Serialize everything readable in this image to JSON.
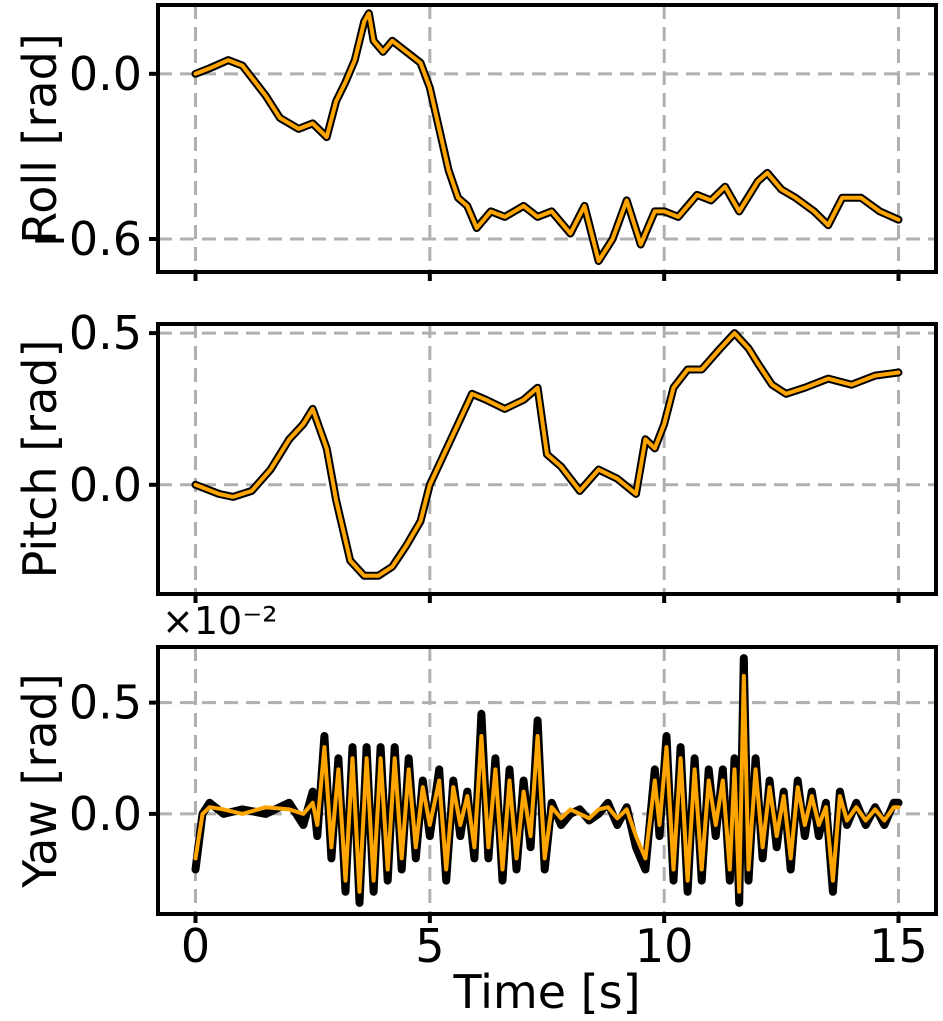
{
  "chart_data": [
    {
      "type": "line",
      "ylabel": "Roll [rad]",
      "xlim": [
        -0.8,
        15.8
      ],
      "ylim": [
        -0.72,
        0.25
      ],
      "yticks": [
        -0.6,
        0.0
      ],
      "ytick_labels": [
        "−0.6",
        "0.0"
      ],
      "grid": true,
      "series": [
        {
          "color": "#000000",
          "x": [
            0,
            0.3,
            0.7,
            1.0,
            1.5,
            1.8,
            2.2,
            2.5,
            2.8,
            3.0,
            3.2,
            3.4,
            3.6,
            3.7,
            3.8,
            4.0,
            4.2,
            4.5,
            4.8,
            5.0,
            5.2,
            5.4,
            5.6,
            5.8,
            6.0,
            6.3,
            6.6,
            7.0,
            7.3,
            7.6,
            8.0,
            8.3,
            8.6,
            8.9,
            9.2,
            9.5,
            9.8,
            10.0,
            10.3,
            10.7,
            11.0,
            11.3,
            11.6,
            12.0,
            12.2,
            12.5,
            12.8,
            13.2,
            13.5,
            13.8,
            14.2,
            14.6,
            15.0
          ],
          "y": [
            0.0,
            0.02,
            0.05,
            0.03,
            -0.08,
            -0.16,
            -0.2,
            -0.18,
            -0.23,
            -0.1,
            -0.03,
            0.05,
            0.19,
            0.22,
            0.12,
            0.08,
            0.12,
            0.08,
            0.04,
            -0.05,
            -0.2,
            -0.35,
            -0.45,
            -0.48,
            -0.56,
            -0.5,
            -0.52,
            -0.48,
            -0.52,
            -0.5,
            -0.58,
            -0.48,
            -0.68,
            -0.6,
            -0.46,
            -0.62,
            -0.5,
            -0.5,
            -0.52,
            -0.44,
            -0.46,
            -0.41,
            -0.5,
            -0.39,
            -0.36,
            -0.42,
            -0.45,
            -0.5,
            -0.55,
            -0.45,
            -0.45,
            -0.5,
            -0.53
          ]
        },
        {
          "color": "#ffa500",
          "x": [
            0,
            0.3,
            0.7,
            1.0,
            1.5,
            1.8,
            2.2,
            2.5,
            2.8,
            3.0,
            3.2,
            3.4,
            3.6,
            3.7,
            3.8,
            4.0,
            4.2,
            4.5,
            4.8,
            5.0,
            5.2,
            5.4,
            5.6,
            5.8,
            6.0,
            6.3,
            6.6,
            7.0,
            7.3,
            7.6,
            8.0,
            8.3,
            8.6,
            8.9,
            9.2,
            9.5,
            9.8,
            10.0,
            10.3,
            10.7,
            11.0,
            11.3,
            11.6,
            12.0,
            12.2,
            12.5,
            12.8,
            13.2,
            13.5,
            13.8,
            14.2,
            14.6,
            15.0
          ],
          "y": [
            0.0,
            0.02,
            0.05,
            0.03,
            -0.08,
            -0.16,
            -0.2,
            -0.18,
            -0.23,
            -0.1,
            -0.03,
            0.05,
            0.19,
            0.22,
            0.12,
            0.08,
            0.12,
            0.08,
            0.04,
            -0.05,
            -0.2,
            -0.35,
            -0.45,
            -0.48,
            -0.56,
            -0.5,
            -0.52,
            -0.48,
            -0.52,
            -0.5,
            -0.58,
            -0.48,
            -0.68,
            -0.6,
            -0.46,
            -0.62,
            -0.5,
            -0.5,
            -0.52,
            -0.44,
            -0.46,
            -0.41,
            -0.5,
            -0.39,
            -0.36,
            -0.42,
            -0.45,
            -0.5,
            -0.55,
            -0.45,
            -0.45,
            -0.5,
            -0.53
          ]
        }
      ]
    },
    {
      "type": "line",
      "ylabel": "Pitch [rad]",
      "xlim": [
        -0.8,
        15.8
      ],
      "ylim": [
        -0.36,
        0.53
      ],
      "yticks": [
        0.0,
        0.5
      ],
      "ytick_labels": [
        "0.0",
        "0.5"
      ],
      "grid": true,
      "series": [
        {
          "color": "#000000",
          "x": [
            0,
            0.5,
            0.8,
            1.2,
            1.6,
            2.0,
            2.3,
            2.5,
            2.8,
            3.0,
            3.3,
            3.6,
            3.9,
            4.2,
            4.5,
            4.8,
            5.0,
            5.3,
            5.6,
            5.9,
            6.2,
            6.6,
            7.0,
            7.3,
            7.5,
            7.8,
            8.2,
            8.6,
            9.0,
            9.4,
            9.6,
            9.8,
            10.0,
            10.2,
            10.5,
            10.8,
            11.2,
            11.5,
            11.8,
            12.0,
            12.3,
            12.6,
            13.0,
            13.5,
            14.0,
            14.5,
            15.0
          ],
          "y": [
            0.0,
            -0.03,
            -0.04,
            -0.02,
            0.05,
            0.15,
            0.2,
            0.25,
            0.12,
            -0.05,
            -0.25,
            -0.3,
            -0.3,
            -0.27,
            -0.2,
            -0.12,
            0.0,
            0.1,
            0.2,
            0.3,
            0.28,
            0.25,
            0.28,
            0.32,
            0.1,
            0.06,
            -0.02,
            0.05,
            0.02,
            -0.03,
            0.15,
            0.12,
            0.2,
            0.32,
            0.38,
            0.38,
            0.45,
            0.5,
            0.45,
            0.4,
            0.33,
            0.3,
            0.32,
            0.35,
            0.33,
            0.36,
            0.37
          ]
        },
        {
          "color": "#ffa500",
          "x": [
            0,
            0.5,
            0.8,
            1.2,
            1.6,
            2.0,
            2.3,
            2.5,
            2.8,
            3.0,
            3.3,
            3.6,
            3.9,
            4.2,
            4.5,
            4.8,
            5.0,
            5.3,
            5.6,
            5.9,
            6.2,
            6.6,
            7.0,
            7.3,
            7.5,
            7.8,
            8.2,
            8.6,
            9.0,
            9.4,
            9.6,
            9.8,
            10.0,
            10.2,
            10.5,
            10.8,
            11.2,
            11.5,
            11.8,
            12.0,
            12.3,
            12.6,
            13.0,
            13.5,
            14.0,
            14.5,
            15.0
          ],
          "y": [
            0.0,
            -0.03,
            -0.04,
            -0.02,
            0.05,
            0.15,
            0.2,
            0.25,
            0.12,
            -0.05,
            -0.25,
            -0.3,
            -0.3,
            -0.27,
            -0.2,
            -0.12,
            0.0,
            0.1,
            0.2,
            0.3,
            0.28,
            0.25,
            0.28,
            0.32,
            0.1,
            0.06,
            -0.02,
            0.05,
            0.02,
            -0.03,
            0.15,
            0.12,
            0.2,
            0.32,
            0.38,
            0.38,
            0.45,
            0.5,
            0.45,
            0.4,
            0.33,
            0.3,
            0.32,
            0.35,
            0.33,
            0.36,
            0.37
          ]
        }
      ]
    },
    {
      "type": "line",
      "ylabel": "Yaw [rad]",
      "xlabel": "Time [s]",
      "offset_text": "×10⁻²",
      "xlim": [
        -0.8,
        15.8
      ],
      "ylim": [
        -0.45,
        0.75
      ],
      "xticks": [
        0,
        5,
        10,
        15
      ],
      "xtick_labels": [
        "0",
        "5",
        "10",
        "15"
      ],
      "yticks": [
        0.0,
        0.5
      ],
      "ytick_labels": [
        "0.0",
        "0.5"
      ],
      "grid": true,
      "series": [
        {
          "color": "#000000",
          "x": [
            0,
            0.15,
            0.3,
            0.6,
            1.0,
            1.5,
            2.0,
            2.3,
            2.5,
            2.6,
            2.75,
            2.9,
            3.05,
            3.2,
            3.35,
            3.5,
            3.65,
            3.8,
            3.95,
            4.1,
            4.25,
            4.4,
            4.55,
            4.7,
            4.85,
            5.0,
            5.2,
            5.35,
            5.5,
            5.65,
            5.8,
            5.95,
            6.1,
            6.25,
            6.4,
            6.55,
            6.7,
            6.85,
            7.0,
            7.15,
            7.3,
            7.45,
            7.6,
            7.8,
            8.0,
            8.2,
            8.4,
            8.6,
            8.8,
            9.0,
            9.2,
            9.4,
            9.6,
            9.8,
            9.9,
            10.05,
            10.2,
            10.35,
            10.5,
            10.65,
            10.8,
            10.95,
            11.1,
            11.25,
            11.4,
            11.5,
            11.6,
            11.7,
            11.8,
            11.95,
            12.1,
            12.25,
            12.4,
            12.55,
            12.7,
            12.85,
            13.0,
            13.15,
            13.3,
            13.45,
            13.6,
            13.75,
            13.9,
            14.1,
            14.3,
            14.5,
            14.7,
            14.9,
            15.0
          ],
          "y": [
            -0.25,
            0.0,
            0.05,
            0.0,
            0.02,
            0.0,
            0.05,
            -0.05,
            0.1,
            -0.1,
            0.35,
            -0.2,
            0.25,
            -0.35,
            0.3,
            -0.4,
            0.3,
            -0.35,
            0.3,
            -0.3,
            0.3,
            -0.25,
            0.25,
            -0.2,
            0.15,
            -0.1,
            0.2,
            -0.3,
            0.15,
            -0.1,
            0.1,
            -0.2,
            0.45,
            -0.2,
            0.25,
            -0.3,
            0.2,
            -0.25,
            0.15,
            -0.15,
            0.42,
            -0.25,
            0.05,
            -0.05,
            0.0,
            0.02,
            -0.03,
            0.0,
            0.05,
            -0.05,
            0.03,
            -0.15,
            -0.25,
            0.2,
            -0.1,
            0.35,
            -0.3,
            0.3,
            -0.35,
            0.25,
            -0.3,
            0.2,
            -0.1,
            0.2,
            -0.3,
            0.25,
            -0.4,
            0.7,
            -0.3,
            0.25,
            -0.2,
            0.15,
            -0.15,
            0.1,
            -0.25,
            0.15,
            -0.1,
            0.1,
            -0.1,
            0.05,
            -0.35,
            0.1,
            -0.05,
            0.05,
            -0.05,
            0.03,
            -0.05,
            0.05,
            0.05
          ]
        },
        {
          "color": "#ffa500",
          "x": [
            0,
            0.15,
            0.3,
            0.6,
            1.0,
            1.5,
            2.0,
            2.3,
            2.5,
            2.6,
            2.75,
            2.9,
            3.05,
            3.2,
            3.35,
            3.5,
            3.65,
            3.8,
            3.95,
            4.1,
            4.25,
            4.4,
            4.55,
            4.7,
            4.85,
            5.0,
            5.2,
            5.35,
            5.5,
            5.65,
            5.8,
            5.95,
            6.1,
            6.25,
            6.4,
            6.55,
            6.7,
            6.85,
            7.0,
            7.15,
            7.3,
            7.45,
            7.6,
            7.8,
            8.0,
            8.2,
            8.4,
            8.6,
            8.8,
            9.0,
            9.2,
            9.4,
            9.6,
            9.8,
            9.9,
            10.05,
            10.2,
            10.35,
            10.5,
            10.65,
            10.8,
            10.95,
            11.1,
            11.25,
            11.4,
            11.5,
            11.6,
            11.7,
            11.8,
            11.95,
            12.1,
            12.25,
            12.4,
            12.55,
            12.7,
            12.85,
            13.0,
            13.15,
            13.3,
            13.45,
            13.6,
            13.75,
            13.9,
            14.1,
            14.3,
            14.5,
            14.7,
            14.9,
            15.0
          ],
          "y": [
            -0.2,
            0.0,
            0.03,
            0.02,
            0.0,
            0.03,
            0.02,
            0.0,
            0.05,
            -0.05,
            0.3,
            -0.15,
            0.2,
            -0.3,
            0.25,
            -0.35,
            0.25,
            -0.3,
            0.25,
            -0.25,
            0.25,
            -0.2,
            0.2,
            -0.15,
            0.12,
            -0.05,
            0.15,
            -0.25,
            0.12,
            -0.05,
            0.08,
            -0.15,
            0.35,
            -0.15,
            0.2,
            -0.25,
            0.15,
            -0.2,
            0.1,
            -0.1,
            0.35,
            -0.2,
            0.03,
            -0.02,
            0.02,
            0.0,
            -0.02,
            0.02,
            0.03,
            -0.02,
            0.02,
            -0.1,
            -0.2,
            0.15,
            -0.05,
            0.3,
            -0.25,
            0.25,
            -0.3,
            0.2,
            -0.25,
            0.15,
            -0.05,
            0.15,
            -0.25,
            0.2,
            -0.35,
            0.62,
            -0.25,
            0.2,
            -0.15,
            0.12,
            -0.1,
            0.08,
            -0.2,
            0.12,
            -0.05,
            0.08,
            -0.05,
            0.03,
            -0.3,
            0.08,
            -0.03,
            0.03,
            -0.03,
            0.02,
            -0.03,
            0.03,
            0.03
          ]
        }
      ]
    }
  ]
}
